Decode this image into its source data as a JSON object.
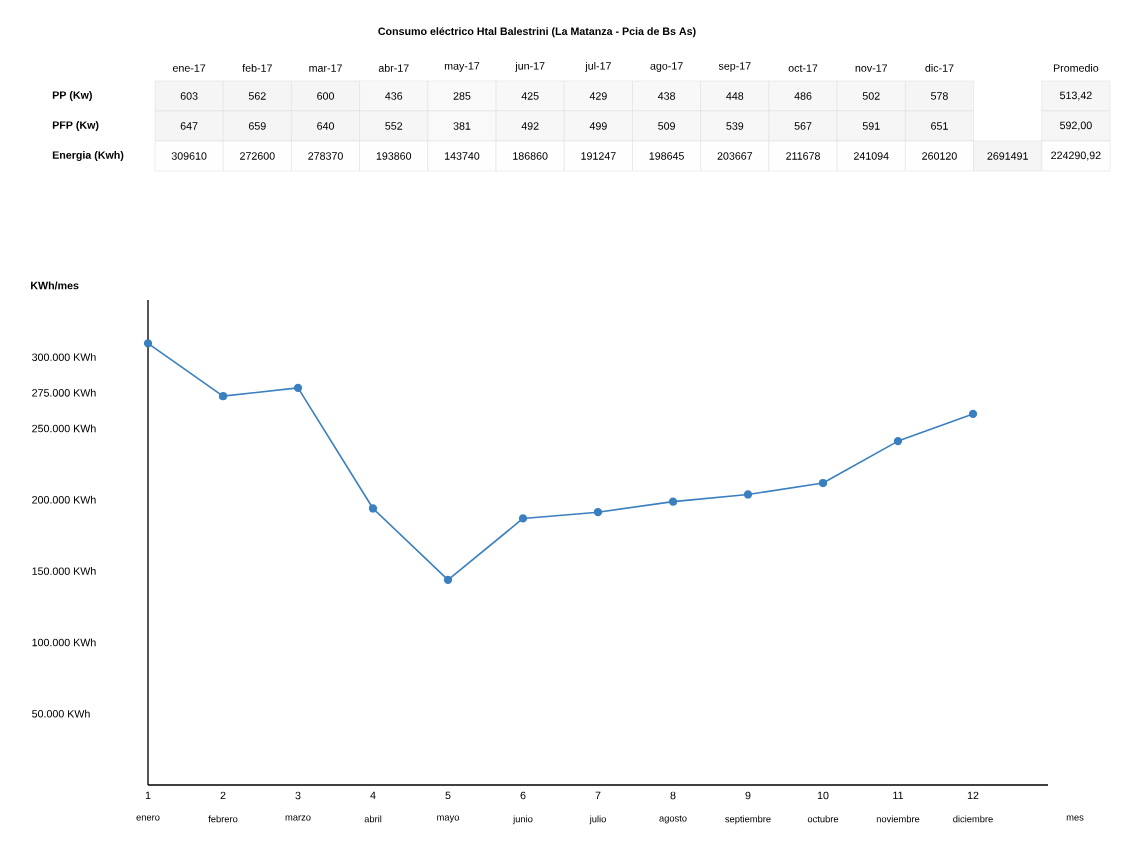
{
  "chart_data": [
    {
      "type": "heatmap",
      "title": "Consumo eléctrico Htal Balestrini (La Matanza - Pcia de Bs As)",
      "categories": [
        "ene-17",
        "feb-17",
        "mar-17",
        "abr-17",
        "may-17",
        "jun-17",
        "jul-17",
        "ago-17",
        "sep-17",
        "oct-17",
        "nov-17",
        "dic-17",
        null,
        "Promedio"
      ],
      "y_categories": [
        "PP (Kw)",
        "PFP (Kw)",
        "Energia (Kwh)"
      ],
      "cells": [
        [
          603,
          562,
          600,
          436,
          285,
          425,
          429,
          438,
          448,
          486,
          502,
          578,
          null,
          513.42
        ],
        [
          647,
          659,
          640,
          552,
          381,
          492,
          499,
          509,
          539,
          567,
          591,
          651,
          null,
          592.0
        ],
        [
          309610,
          272600,
          278370,
          193860,
          143740,
          186860,
          191247,
          198645,
          203667,
          211678,
          241094,
          260120,
          2691491,
          224290.92
        ]
      ],
      "cell_labels": [
        [
          "603",
          "562",
          "600",
          "436",
          "285",
          "425",
          "429",
          "438",
          "448",
          "486",
          "502",
          "578",
          null,
          "513,42"
        ],
        [
          "647",
          "659",
          "640",
          "552",
          "381",
          "492",
          "499",
          "509",
          "539",
          "567",
          "591",
          "651",
          null,
          "592,00"
        ],
        [
          "309610",
          "272600",
          "278370",
          "193860",
          "143740",
          "186860",
          "191247",
          "198645",
          "203667",
          "211678",
          "241094",
          "260120",
          "2691491",
          "224290,92"
        ]
      ]
    },
    {
      "type": "line",
      "ylabel": "KWh/mes",
      "xlabel": "mes",
      "x": [
        1,
        2,
        3,
        4,
        5,
        6,
        7,
        8,
        9,
        10,
        11,
        12
      ],
      "values": [
        309610,
        272600,
        278370,
        193860,
        143740,
        186860,
        191247,
        198645,
        203667,
        211678,
        241094,
        260120
      ],
      "data_labels": false,
      "color": "#3a7fbf",
      "marker": "circle",
      "xlim": [
        1,
        13
      ],
      "xticks": [
        1,
        2,
        3,
        4,
        5,
        6,
        7,
        8,
        9,
        10,
        11,
        12
      ],
      "ylim": [
        0,
        340000
      ],
      "yticks": [
        {
          "value": 50000,
          "label": "50.000 KWh"
        },
        {
          "value": 100000,
          "label": "100.000 KWh"
        },
        {
          "value": 150000,
          "label": "150.000 KWh"
        },
        {
          "value": 200000,
          "label": "200.000 KWh"
        },
        {
          "value": 250000,
          "label": "250.000 KWh"
        },
        {
          "value": 275000,
          "label": "275.000 KWh"
        },
        {
          "value": 300000,
          "label": "300.000 KWh"
        }
      ],
      "annotations": [
        "enero",
        "febrero",
        "marzo",
        "abril",
        "mayo",
        "junio",
        "julio",
        "agosto",
        "septiembre",
        "octubre",
        "noviembre",
        "diciembre"
      ]
    }
  ]
}
